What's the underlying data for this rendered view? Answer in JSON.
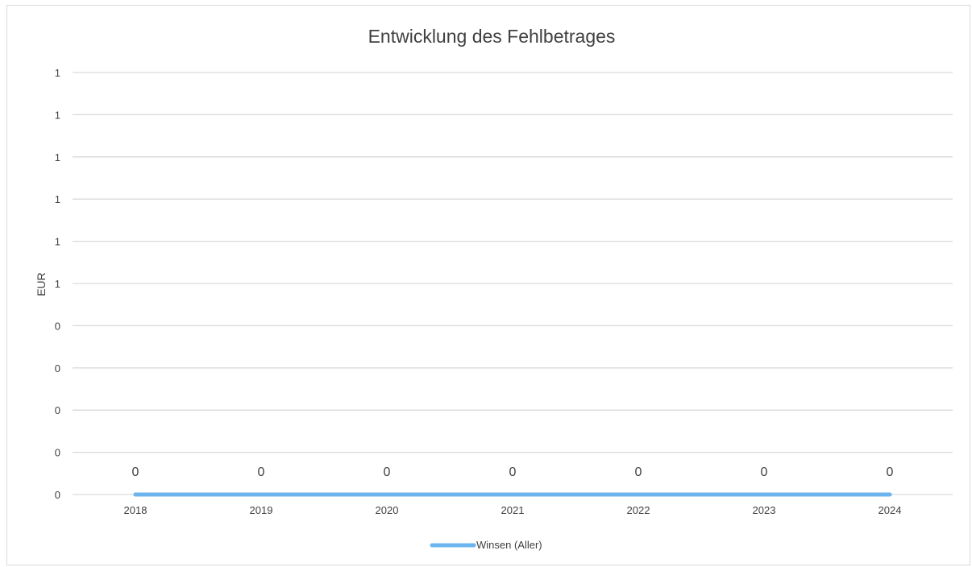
{
  "colors": {
    "series": "#6cb4ee",
    "grid": "#d9d9d9",
    "text": "#404040"
  },
  "chart_data": {
    "type": "line",
    "title": "Entwicklung des Fehlbetrages",
    "xlabel": "",
    "ylabel": "EUR",
    "categories": [
      "2018",
      "2019",
      "2020",
      "2021",
      "2022",
      "2023",
      "2024"
    ],
    "y_tick_labels": [
      "0",
      "0",
      "0",
      "0",
      "0",
      "1",
      "1",
      "1",
      "1",
      "1",
      "1"
    ],
    "ylim": [
      0,
      1
    ],
    "grid": true,
    "legend_position": "bottom",
    "series": [
      {
        "name": "Winsen (Aller)",
        "values": [
          0,
          0,
          0,
          0,
          0,
          0,
          0
        ],
        "data_labels": [
          "0",
          "0",
          "0",
          "0",
          "0",
          "0",
          "0"
        ]
      }
    ]
  }
}
